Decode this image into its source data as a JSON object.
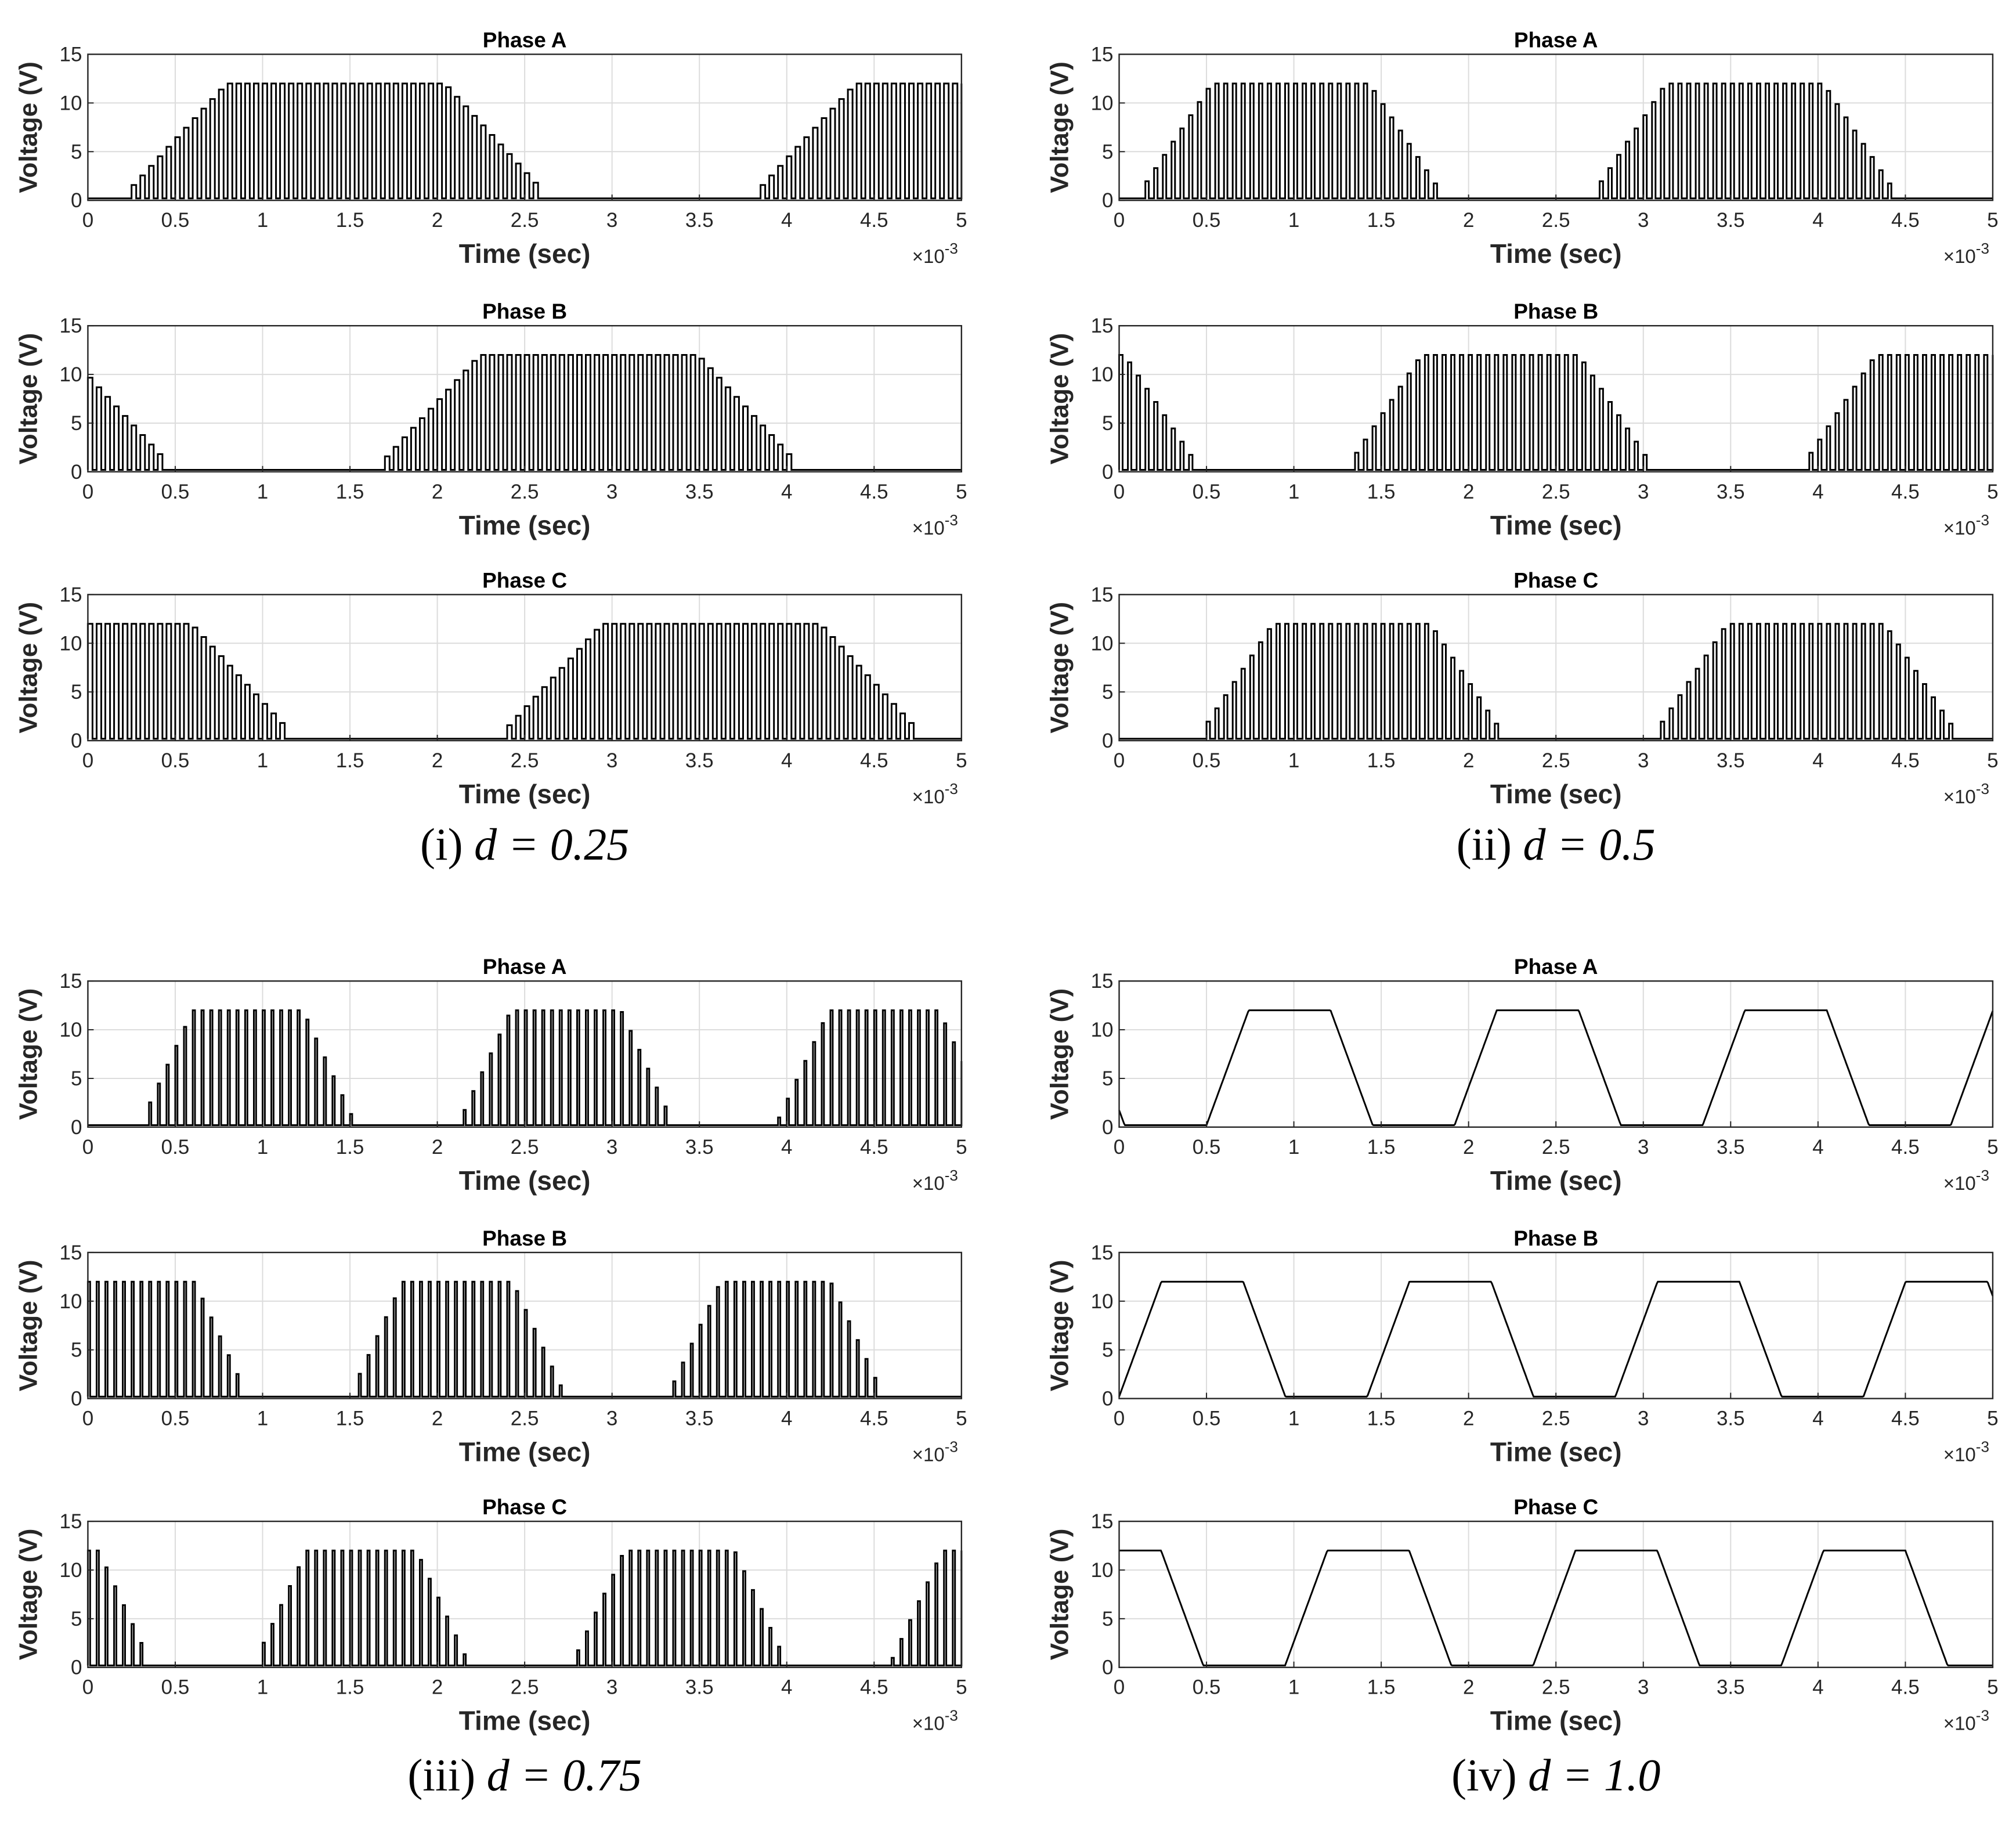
{
  "chart_data": [
    {
      "panel": "(i)",
      "d_expr": "d = 0.25",
      "d": 0.25,
      "plots": [
        {
          "type": "line",
          "title": "Phase A",
          "xlabel": "Time (sec)",
          "ylabel": "Voltage (V)",
          "xlim": [
            0,
            5
          ],
          "ylim": [
            0,
            15
          ],
          "x_exponent": "-3",
          "x_ticks": [
            0,
            0.5,
            1,
            1.5,
            2,
            2.5,
            3,
            3.5,
            4,
            4.5,
            5
          ],
          "y_ticks": [
            0,
            5,
            10,
            15
          ],
          "grid": true,
          "peak_voltage": 12,
          "phase_offset": 0.2
        },
        {
          "type": "line",
          "title": "Phase B",
          "xlabel": "Time (sec)",
          "ylabel": "Voltage (V)",
          "xlim": [
            0,
            5
          ],
          "ylim": [
            0,
            15
          ],
          "x_exponent": "-3",
          "x_ticks": [
            0,
            0.5,
            1,
            1.5,
            2,
            2.5,
            3,
            3.5,
            4,
            4.5,
            5
          ],
          "y_ticks": [
            0,
            5,
            10,
            15
          ],
          "grid": true,
          "peak_voltage": 12,
          "phase_offset": 1.65
        },
        {
          "type": "line",
          "title": "Phase C",
          "xlabel": "Time (sec)",
          "ylabel": "Voltage (V)",
          "xlim": [
            0,
            5
          ],
          "ylim": [
            0,
            15
          ],
          "x_exponent": "-3",
          "x_ticks": [
            0,
            0.5,
            1,
            1.5,
            2,
            2.5,
            3,
            3.5,
            4,
            4.5,
            5
          ],
          "y_ticks": [
            0,
            5,
            10,
            15
          ],
          "grid": true,
          "peak_voltage": 12,
          "phase_offset": -1.25
        }
      ]
    },
    {
      "panel": "(ii)",
      "d_expr": "d = 0.5",
      "d": 0.5,
      "plots": [
        {
          "type": "line",
          "title": "Phase A",
          "xlabel": "Time (sec)",
          "ylabel": "Voltage (V)",
          "xlim": [
            0,
            5
          ],
          "ylim": [
            0,
            15
          ],
          "x_exponent": "-3",
          "x_ticks": [
            0,
            0.5,
            1,
            1.5,
            2,
            2.5,
            3,
            3.5,
            4,
            4.5,
            5
          ],
          "y_ticks": [
            0,
            5,
            10,
            15
          ],
          "grid": true,
          "peak_voltage": 12,
          "phase_offset": 0.1
        },
        {
          "type": "line",
          "title": "Phase B",
          "xlabel": "Time (sec)",
          "ylabel": "Voltage (V)",
          "xlim": [
            0,
            5
          ],
          "ylim": [
            0,
            15
          ],
          "x_exponent": "-3",
          "x_ticks": [
            0,
            0.5,
            1,
            1.5,
            2,
            2.5,
            3,
            3.5,
            4,
            4.5,
            5
          ],
          "y_ticks": [
            0,
            5,
            10,
            15
          ],
          "grid": true,
          "peak_voltage": 12,
          "phase_offset": 1.3
        },
        {
          "type": "line",
          "title": "Phase C",
          "xlabel": "Time (sec)",
          "ylabel": "Voltage (V)",
          "xlim": [
            0,
            5
          ],
          "ylim": [
            0,
            15
          ],
          "x_exponent": "-3",
          "x_ticks": [
            0,
            0.5,
            1,
            1.5,
            2,
            2.5,
            3,
            3.5,
            4,
            4.5,
            5
          ],
          "y_ticks": [
            0,
            5,
            10,
            15
          ],
          "grid": true,
          "peak_voltage": 12,
          "phase_offset": 0.45
        }
      ]
    },
    {
      "panel": "(iii)",
      "d_expr": "d = 0.75",
      "d": 0.75,
      "plots": [
        {
          "type": "line",
          "title": "Phase A",
          "xlabel": "Time (sec)",
          "ylabel": "Voltage (V)",
          "xlim": [
            0,
            5
          ],
          "ylim": [
            0,
            15
          ],
          "x_exponent": "-3",
          "x_ticks": [
            0,
            0.5,
            1,
            1.5,
            2,
            2.5,
            3,
            3.5,
            4,
            4.5,
            5
          ],
          "y_ticks": [
            0,
            5,
            10,
            15
          ],
          "grid": true,
          "peak_voltage": 12,
          "phase_offset": 0.3
        },
        {
          "type": "line",
          "title": "Phase B",
          "xlabel": "Time (sec)",
          "ylabel": "Voltage (V)",
          "xlim": [
            0,
            5
          ],
          "ylim": [
            0,
            15
          ],
          "x_exponent": "-3",
          "x_ticks": [
            0,
            0.5,
            1,
            1.5,
            2,
            2.5,
            3,
            3.5,
            4,
            4.5,
            5
          ],
          "y_ticks": [
            0,
            5,
            10,
            15
          ],
          "grid": true,
          "peak_voltage": 12,
          "phase_offset": 1.5
        },
        {
          "type": "line",
          "title": "Phase C",
          "xlabel": "Time (sec)",
          "ylabel": "Voltage (V)",
          "xlim": [
            0,
            5
          ],
          "ylim": [
            0,
            15
          ],
          "x_exponent": "-3",
          "x_ticks": [
            0,
            0.5,
            1,
            1.5,
            2,
            2.5,
            3,
            3.5,
            4,
            4.5,
            5
          ],
          "y_ticks": [
            0,
            5,
            10,
            15
          ],
          "grid": true,
          "peak_voltage": 12,
          "phase_offset": 0.95
        }
      ]
    },
    {
      "panel": "(iv)",
      "d_expr": "d = 1.0",
      "d": 1.0,
      "plots": [
        {
          "type": "line",
          "title": "Phase A",
          "xlabel": "Time (sec)",
          "ylabel": "Voltage (V)",
          "xlim": [
            0,
            5
          ],
          "ylim": [
            0,
            15
          ],
          "x_exponent": "-3",
          "x_ticks": [
            0,
            0.5,
            1,
            1.5,
            2,
            2.5,
            3,
            3.5,
            4,
            4.5,
            5
          ],
          "y_ticks": [
            0,
            5,
            10,
            15
          ],
          "grid": true,
          "peak_voltage": 12,
          "phase_offset": 0.5
        },
        {
          "type": "line",
          "title": "Phase B",
          "xlabel": "Time (sec)",
          "ylabel": "Voltage (V)",
          "xlim": [
            0,
            5
          ],
          "ylim": [
            0,
            15
          ],
          "x_exponent": "-3",
          "x_ticks": [
            0,
            0.5,
            1,
            1.5,
            2,
            2.5,
            3,
            3.5,
            4,
            4.5,
            5
          ],
          "y_ticks": [
            0,
            5,
            10,
            15
          ],
          "grid": true,
          "peak_voltage": 12,
          "phase_offset": 0.0
        },
        {
          "type": "line",
          "title": "Phase C",
          "xlabel": "Time (sec)",
          "ylabel": "Voltage (V)",
          "xlim": [
            0,
            5
          ],
          "ylim": [
            0,
            15
          ],
          "x_exponent": "-3",
          "x_ticks": [
            0,
            0.5,
            1,
            1.5,
            2,
            2.5,
            3,
            3.5,
            4,
            4.5,
            5
          ],
          "y_ticks": [
            0,
            5,
            10,
            15
          ],
          "grid": true,
          "peak_voltage": 12,
          "phase_offset": 0.95
        }
      ]
    }
  ]
}
